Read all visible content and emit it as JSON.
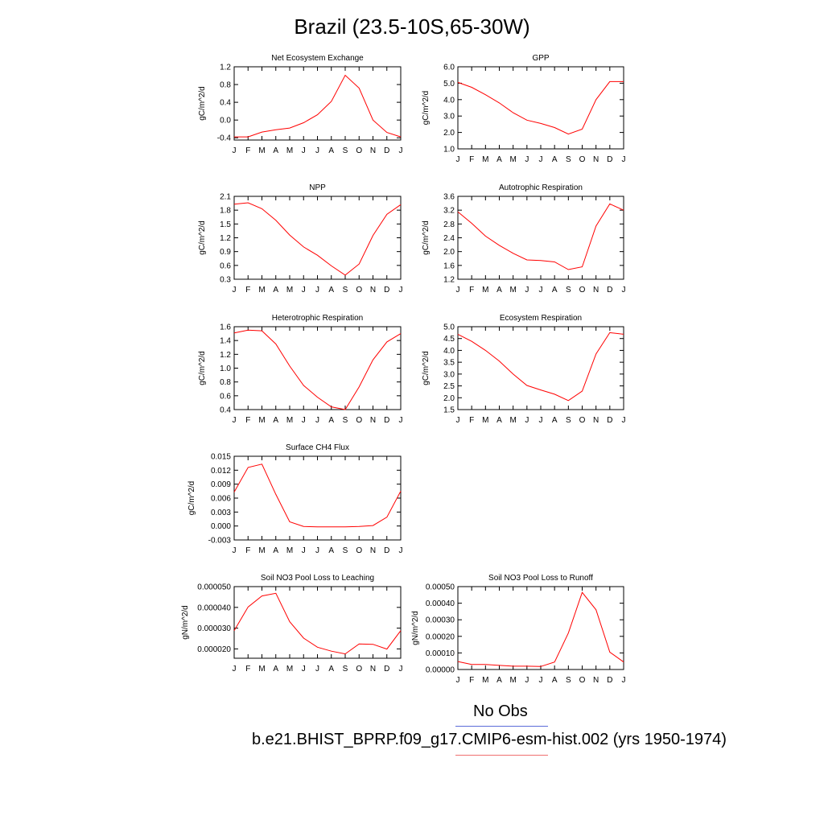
{
  "title": "Brazil (23.5-10S,65-30W)",
  "legend": {
    "obs_label": "No Obs",
    "obs_color": "#5b6bd9",
    "model_label": "b.e21.BHIST_BPRP.f09_g17.CMIP6-esm-hist.002 (yrs 1950-1974)",
    "model_color": "#f07070"
  },
  "line_color": "#ff0000",
  "chart_data": [
    {
      "type": "line",
      "title": "Net Ecosystem Exchange",
      "ylabel": "gC/m^2/d",
      "categories": [
        "J",
        "F",
        "M",
        "A",
        "M",
        "J",
        "J",
        "A",
        "S",
        "O",
        "N",
        "D",
        "J"
      ],
      "yticks": [
        "-0.4",
        "0.0",
        "0.4",
        "0.8",
        "1.2"
      ],
      "ytick_values": [
        -0.4,
        0.0,
        0.4,
        0.8,
        1.2
      ],
      "ylim": [
        -0.45,
        1.2
      ],
      "values": [
        -0.38,
        -0.38,
        -0.27,
        -0.22,
        -0.18,
        -0.06,
        0.12,
        0.42,
        1.01,
        0.72,
        0.0,
        -0.28,
        -0.38
      ]
    },
    {
      "type": "line",
      "title": "GPP",
      "ylabel": "gC/m^2/d",
      "categories": [
        "J",
        "F",
        "M",
        "A",
        "M",
        "J",
        "J",
        "A",
        "S",
        "O",
        "N",
        "D",
        "J"
      ],
      "yticks": [
        "1.0",
        "2.0",
        "3.0",
        "4.0",
        "5.0",
        "6.0"
      ],
      "ytick_values": [
        1.0,
        2.0,
        3.0,
        4.0,
        5.0,
        6.0
      ],
      "ylim": [
        1.0,
        6.0
      ],
      "values": [
        5.05,
        4.75,
        4.3,
        3.8,
        3.2,
        2.75,
        2.55,
        2.3,
        1.9,
        2.2,
        4.0,
        5.1,
        5.1
      ]
    },
    {
      "type": "line",
      "title": "NPP",
      "ylabel": "gC/m^2/d",
      "categories": [
        "J",
        "F",
        "M",
        "A",
        "M",
        "J",
        "J",
        "A",
        "S",
        "O",
        "N",
        "D",
        "J"
      ],
      "yticks": [
        "0.3",
        "0.6",
        "0.9",
        "1.2",
        "1.5",
        "1.8",
        "2.1"
      ],
      "ytick_values": [
        0.3,
        0.6,
        0.9,
        1.2,
        1.5,
        1.8,
        2.1
      ],
      "ylim": [
        0.3,
        2.1
      ],
      "values": [
        1.93,
        1.96,
        1.83,
        1.58,
        1.26,
        1.0,
        0.82,
        0.59,
        0.39,
        0.63,
        1.25,
        1.71,
        1.92
      ]
    },
    {
      "type": "line",
      "title": "Autotrophic Respiration",
      "ylabel": "gC/m^2/d",
      "categories": [
        "J",
        "F",
        "M",
        "A",
        "M",
        "J",
        "J",
        "A",
        "S",
        "O",
        "N",
        "D",
        "J"
      ],
      "yticks": [
        "1.2",
        "1.6",
        "2.0",
        "2.4",
        "2.8",
        "3.2",
        "3.6"
      ],
      "ytick_values": [
        1.2,
        1.6,
        2.0,
        2.4,
        2.8,
        3.2,
        3.6
      ],
      "ylim": [
        1.2,
        3.6
      ],
      "values": [
        3.15,
        2.82,
        2.45,
        2.18,
        1.95,
        1.76,
        1.74,
        1.7,
        1.48,
        1.56,
        2.74,
        3.38,
        3.2
      ]
    },
    {
      "type": "line",
      "title": "Heterotrophic Respiration",
      "ylabel": "gC/m^2/d",
      "categories": [
        "J",
        "F",
        "M",
        "A",
        "M",
        "J",
        "J",
        "A",
        "S",
        "O",
        "N",
        "D",
        "J"
      ],
      "yticks": [
        "0.4",
        "0.6",
        "0.8",
        "1.0",
        "1.2",
        "1.4",
        "1.6"
      ],
      "ytick_values": [
        0.4,
        0.6,
        0.8,
        1.0,
        1.2,
        1.4,
        1.6
      ],
      "ylim": [
        0.4,
        1.6
      ],
      "values": [
        1.51,
        1.55,
        1.54,
        1.35,
        1.03,
        0.75,
        0.58,
        0.44,
        0.4,
        0.73,
        1.12,
        1.38,
        1.5
      ]
    },
    {
      "type": "line",
      "title": "Ecosystem Respiration",
      "ylabel": "gC/m^2/d",
      "categories": [
        "J",
        "F",
        "M",
        "A",
        "M",
        "J",
        "J",
        "A",
        "S",
        "O",
        "N",
        "D",
        "J"
      ],
      "yticks": [
        "1.5",
        "2.0",
        "2.5",
        "3.0",
        "3.5",
        "4.0",
        "4.5",
        "5.0"
      ],
      "ytick_values": [
        1.5,
        2.0,
        2.5,
        3.0,
        3.5,
        4.0,
        4.5,
        5.0
      ],
      "ylim": [
        1.5,
        5.0
      ],
      "values": [
        4.68,
        4.38,
        4.0,
        3.55,
        3.0,
        2.52,
        2.33,
        2.15,
        1.88,
        2.28,
        3.85,
        4.75,
        4.68
      ]
    },
    {
      "type": "line",
      "title": "Surface CH4 Flux",
      "ylabel": "gC/m^2/d",
      "categories": [
        "J",
        "F",
        "M",
        "A",
        "M",
        "J",
        "J",
        "A",
        "S",
        "O",
        "N",
        "D",
        "J"
      ],
      "yticks": [
        "-0.003",
        "0.000",
        "0.003",
        "0.006",
        "0.009",
        "0.012",
        "0.015"
      ],
      "ytick_values": [
        -0.003,
        0.0,
        0.003,
        0.006,
        0.009,
        0.012,
        0.015
      ],
      "ylim": [
        -0.003,
        0.015
      ],
      "values": [
        0.0073,
        0.0126,
        0.0133,
        0.0068,
        0.0009,
        -0.0001,
        -0.0002,
        -0.0002,
        -0.0002,
        -0.0001,
        0.0001,
        0.0019,
        0.0075
      ]
    },
    {
      "type": "line",
      "title": "Soil NO3 Pool Loss to Leaching",
      "ylabel": "gN/m^2/d",
      "categories": [
        "J",
        "F",
        "M",
        "A",
        "M",
        "J",
        "J",
        "A",
        "S",
        "O",
        "N",
        "D",
        "J"
      ],
      "yticks": [
        "0.000020",
        "0.000030",
        "0.000040",
        "0.000050"
      ],
      "ytick_values": [
        2e-05,
        3e-05,
        4e-05,
        5e-05
      ],
      "ylim": [
        1.55e-05,
        5e-05
      ],
      "values": [
        2.88e-05,
        4.02e-05,
        4.55e-05,
        4.68e-05,
        3.31e-05,
        2.52e-05,
        2.08e-05,
        1.89e-05,
        1.76e-05,
        2.24e-05,
        2.22e-05,
        1.99e-05,
        2.88e-05
      ]
    },
    {
      "type": "line",
      "title": "Soil NO3 Pool Loss to Runoff",
      "ylabel": "gN/m^2/d",
      "categories": [
        "J",
        "F",
        "M",
        "A",
        "M",
        "J",
        "J",
        "A",
        "S",
        "O",
        "N",
        "D",
        "J"
      ],
      "yticks": [
        "0.00000",
        "0.00010",
        "0.00020",
        "0.00030",
        "0.00040",
        "0.00050"
      ],
      "ytick_values": [
        0.0,
        0.0001,
        0.0002,
        0.0003,
        0.0004,
        0.0005
      ],
      "ylim": [
        0.0,
        0.0005
      ],
      "values": [
        4.8e-05,
        3e-05,
        3e-05,
        2.5e-05,
        2e-05,
        2e-05,
        1.8e-05,
        4.5e-05,
        0.00022,
        0.000465,
        0.00036,
        0.000105,
        4.5e-05
      ]
    }
  ]
}
